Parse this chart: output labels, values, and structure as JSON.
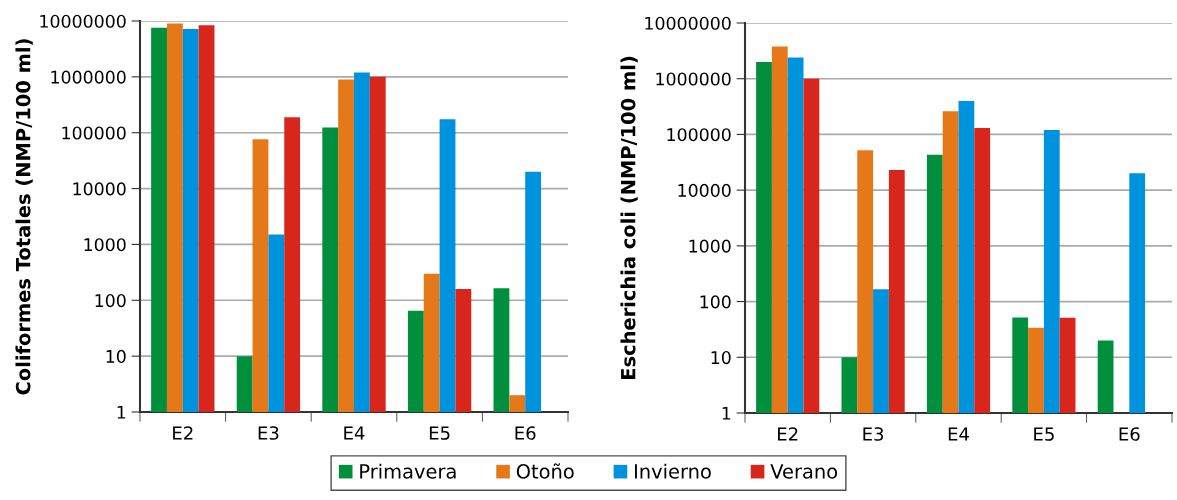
{
  "chart_data": [
    {
      "type": "bar",
      "ylabel": "Coliformes Totales (NMP/100 ml)",
      "categories": [
        "E2",
        "E3",
        "E4",
        "E5",
        "E6"
      ],
      "log": true,
      "ylim": [
        1,
        10000000
      ],
      "yticks": [
        1,
        10,
        100,
        1000,
        10000,
        100000,
        1000000,
        10000000
      ],
      "grid": "y",
      "legend": "bottom",
      "series": [
        {
          "name": "Primavera",
          "color": "#008f3c",
          "values": [
            7600000,
            10,
            124000,
            65,
            165
          ]
        },
        {
          "name": "Otoño",
          "color": "#e57818",
          "values": [
            9000000,
            76000,
            900000,
            300,
            2
          ]
        },
        {
          "name": "Invierno",
          "color": "#0093dd",
          "values": [
            7200000,
            1500,
            1200000,
            175000,
            20000
          ]
        },
        {
          "name": "Verano",
          "color": "#d9261c",
          "values": [
            8400000,
            190000,
            1000000,
            160,
            null
          ]
        }
      ]
    },
    {
      "type": "bar",
      "ylabel": "Escherichia coli (NMP/100 ml)",
      "categories": [
        "E2",
        "E3",
        "E4",
        "E5",
        "E6"
      ],
      "log": true,
      "ylim": [
        1,
        10000000
      ],
      "yticks": [
        1,
        10,
        100,
        1000,
        10000,
        100000,
        1000000,
        10000000
      ],
      "grid": "y",
      "series": [
        {
          "color": "#008f3c",
          "values": [
            2000000,
            10,
            43000,
            52,
            20
          ]
        },
        {
          "color": "#e57818",
          "values": [
            3800000,
            52000,
            260000,
            34,
            null
          ]
        },
        {
          "color": "#0093dd",
          "values": [
            2400000,
            166,
            400000,
            120000,
            20000
          ]
        },
        {
          "color": "#d9261c",
          "values": [
            1000000,
            23000,
            130000,
            51,
            null
          ]
        }
      ]
    }
  ]
}
